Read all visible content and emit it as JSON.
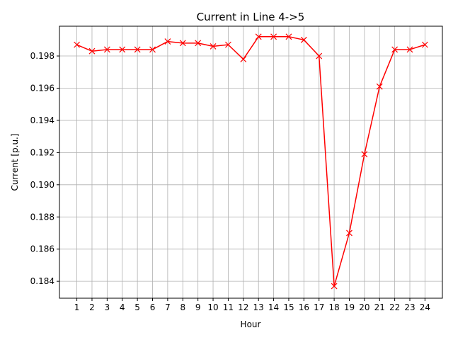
{
  "chart_data": {
    "type": "line",
    "title": "Current in Line 4->5",
    "xlabel": "Hour",
    "ylabel": "Current  [p.u.]",
    "x": [
      1,
      2,
      3,
      4,
      5,
      6,
      7,
      8,
      9,
      10,
      11,
      12,
      13,
      14,
      15,
      16,
      17,
      18,
      19,
      20,
      21,
      22,
      23,
      24
    ],
    "x_tick_labels": [
      "1",
      "2",
      "3",
      "4",
      "5",
      "6",
      "7",
      "8",
      "9",
      "10",
      "11",
      "12",
      "13",
      "14",
      "15",
      "16",
      "17",
      "18",
      "19",
      "20",
      "21",
      "22",
      "23",
      "24"
    ],
    "series": [
      {
        "values": [
          0.1987,
          0.1983,
          0.1984,
          0.1984,
          0.1984,
          0.1984,
          0.1989,
          0.1988,
          0.1988,
          0.1986,
          0.1987,
          0.1978,
          0.1992,
          0.1992,
          0.1992,
          0.199,
          0.198,
          0.1837,
          0.187,
          0.1919,
          0.1961,
          0.1984,
          0.1984,
          0.1987
        ],
        "color": "#ff0000",
        "marker": "x"
      }
    ],
    "xlim": [
      -0.15,
      25.15
    ],
    "ylim": [
      0.18295,
      0.19985
    ],
    "y_ticks": [
      0.184,
      0.186,
      0.188,
      0.19,
      0.192,
      0.194,
      0.196,
      0.198
    ],
    "y_tick_labels": [
      "0.184",
      "0.186",
      "0.188",
      "0.190",
      "0.192",
      "0.194",
      "0.196",
      "0.198"
    ],
    "grid": true,
    "legend": "none"
  }
}
